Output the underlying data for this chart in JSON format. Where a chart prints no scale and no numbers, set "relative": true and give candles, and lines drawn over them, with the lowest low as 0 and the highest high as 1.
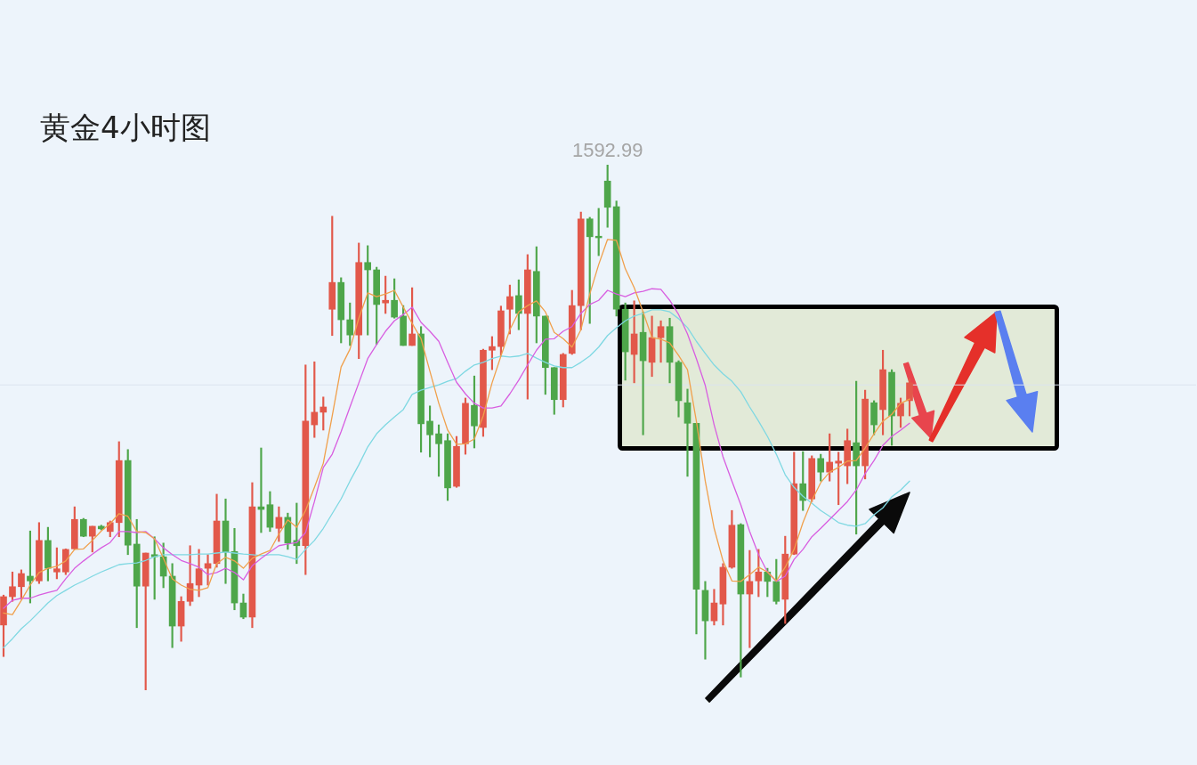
{
  "chart_data": {
    "type": "candlestick",
    "title": "黄金4小时图",
    "relative": true,
    "categories": [
      null,
      null,
      null,
      null,
      null,
      null,
      null,
      null,
      null,
      null,
      null,
      null,
      null,
      null,
      null,
      null,
      null,
      null,
      null,
      null,
      null,
      null,
      null,
      null,
      null,
      null,
      null,
      null,
      null,
      null,
      null,
      null,
      null,
      null,
      null,
      null,
      null,
      null,
      null,
      null,
      null,
      null,
      null,
      null,
      null,
      null,
      null,
      null,
      null,
      null,
      null,
      null,
      null,
      null,
      null,
      null,
      null,
      null,
      null,
      null,
      null,
      null,
      null,
      null,
      null,
      null,
      null,
      null,
      null,
      null,
      null,
      null,
      null,
      null,
      null,
      null,
      null,
      null,
      null,
      null,
      null,
      null,
      null,
      null,
      null,
      null,
      null,
      null,
      null,
      null,
      null,
      null,
      null,
      null,
      null,
      null,
      null,
      null,
      null,
      null,
      null,
      null,
      null
    ],
    "ohlc": [
      [
        0.124,
        0.181,
        0.064,
        0.178
      ],
      [
        0.178,
        0.225,
        0.169,
        0.197
      ],
      [
        0.197,
        0.229,
        0.173,
        0.222
      ],
      [
        0.217,
        0.303,
        0.166,
        0.208
      ],
      [
        0.208,
        0.319,
        0.203,
        0.285
      ],
      [
        0.285,
        0.31,
        0.208,
        0.232
      ],
      [
        0.225,
        0.271,
        0.212,
        0.231
      ],
      [
        0.225,
        0.269,
        0.22,
        0.268
      ],
      [
        0.269,
        0.349,
        0.268,
        0.325
      ],
      [
        0.325,
        0.327,
        0.292,
        0.293
      ],
      [
        0.293,
        0.312,
        0.263,
        0.312
      ],
      [
        0.312,
        0.314,
        0.305,
        0.307
      ],
      [
        0.302,
        0.322,
        0.292,
        0.319
      ],
      [
        0.319,
        0.473,
        0.292,
        0.437
      ],
      [
        0.437,
        0.458,
        0.258,
        0.276
      ],
      [
        0.278,
        0.325,
        0.119,
        0.198
      ],
      [
        0.198,
        0.261,
        0,
        0.261
      ],
      [
        0.258,
        0.292,
        0.173,
        0.254
      ],
      [
        0.254,
        0.28,
        0.195,
        0.217
      ],
      [
        0.217,
        0.241,
        0.081,
        0.122
      ],
      [
        0.122,
        0.178,
        0.093,
        0.169
      ],
      [
        0.169,
        0.275,
        0.161,
        0.203
      ],
      [
        0.2,
        0.268,
        0.178,
        0.231
      ],
      [
        0.232,
        0.258,
        0.2,
        0.241
      ],
      [
        0.241,
        0.373,
        0.234,
        0.322
      ],
      [
        0.322,
        0.364,
        0.203,
        0.263
      ],
      [
        0.264,
        0.308,
        0.153,
        0.166
      ],
      [
        0.166,
        0.183,
        0.136,
        0.139
      ],
      [
        0.139,
        0.395,
        0.119,
        0.349
      ],
      [
        0.349,
        0.461,
        0.3,
        0.344
      ],
      [
        0.353,
        0.378,
        0.302,
        0.31
      ],
      [
        0.308,
        0.349,
        0.283,
        0.329
      ],
      [
        0.329,
        0.337,
        0.268,
        0.28
      ],
      [
        0.285,
        0.356,
        0.241,
        0.275
      ],
      [
        0.275,
        0.619,
        0.22,
        0.512
      ],
      [
        0.505,
        0.625,
        0.481,
        0.529
      ],
      [
        0.529,
        0.558,
        0.495,
        0.539
      ],
      [
        0.725,
        0.902,
        0.675,
        0.776
      ],
      [
        0.776,
        0.785,
        0.661,
        0.705
      ],
      [
        0.705,
        0.737,
        0.656,
        0.676
      ],
      [
        0.676,
        0.851,
        0.631,
        0.814
      ],
      [
        0.814,
        0.846,
        0.676,
        0.8
      ],
      [
        0.8,
        0.805,
        0.658,
        0.734
      ],
      [
        0.737,
        0.788,
        0.717,
        0.742
      ],
      [
        0.742,
        0.783,
        0.708,
        0.71
      ],
      [
        0.712,
        0.732,
        0.656,
        0.656
      ],
      [
        0.656,
        0.766,
        0.656,
        0.678
      ],
      [
        0.678,
        0.692,
        0.453,
        0.507
      ],
      [
        0.512,
        0.541,
        0.444,
        0.486
      ],
      [
        0.488,
        0.505,
        0.407,
        0.469
      ],
      [
        0.475,
        0.488,
        0.361,
        0.385
      ],
      [
        0.388,
        0.483,
        0.386,
        0.464
      ],
      [
        0.469,
        0.556,
        0.449,
        0.546
      ],
      [
        0.542,
        0.598,
        0.461,
        0.503
      ],
      [
        0.5,
        0.649,
        0.483,
        0.647
      ],
      [
        0.647,
        0.673,
        0.61,
        0.654
      ],
      [
        0.654,
        0.731,
        0.636,
        0.722
      ],
      [
        0.725,
        0.771,
        0.678,
        0.749
      ],
      [
        0.751,
        0.781,
        0.686,
        0.717
      ],
      [
        0.717,
        0.829,
        0.554,
        0.8
      ],
      [
        0.797,
        0.844,
        0.661,
        0.712
      ],
      [
        0.712,
        0.712,
        0.563,
        0.614
      ],
      [
        0.614,
        0.614,
        0.525,
        0.553
      ],
      [
        0.553,
        0.641,
        0.539,
        0.639
      ],
      [
        0.641,
        0.761,
        0.639,
        0.732
      ],
      [
        0.732,
        0.91,
        0.686,
        0.897
      ],
      [
        0.897,
        0.9,
        0.698,
        0.863
      ],
      [
        0.864,
        0.917,
        0.827,
        0.861
      ],
      [
        0.969,
        1,
        0.881,
        0.919
      ],
      [
        0.92,
        0.931,
        0.712,
        0.725
      ],
      [
        0.725,
        0.737,
        0.59,
        0.644
      ],
      [
        0.639,
        0.741,
        0.585,
        0.678
      ],
      [
        0.681,
        0.72,
        0.486,
        0.627
      ],
      [
        0.624,
        0.712,
        0.597,
        0.671
      ],
      [
        0.671,
        0.703,
        0.624,
        0.692
      ],
      [
        0.692,
        0.708,
        0.585,
        0.624
      ],
      [
        0.624,
        0.627,
        0.52,
        0.551
      ],
      [
        0.547,
        0.573,
        0.407,
        0.508
      ],
      [
        0.508,
        0.508,
        0.107,
        0.192
      ],
      [
        0.19,
        0.207,
        0.059,
        0.132
      ],
      [
        0.132,
        0.192,
        0.124,
        0.166
      ],
      [
        0.164,
        0.241,
        0.124,
        0.234
      ],
      [
        0.234,
        0.342,
        0.232,
        0.314
      ],
      [
        0.315,
        0.317,
        0.025,
        0.183
      ],
      [
        0.183,
        0.266,
        0.081,
        0.207
      ],
      [
        0.208,
        0.268,
        0.178,
        0.225
      ],
      [
        0.225,
        0.232,
        0.178,
        0.207
      ],
      [
        0.207,
        0.249,
        0.164,
        0.169
      ],
      [
        0.173,
        0.293,
        0.127,
        0.259
      ],
      [
        0.259,
        0.453,
        0.258,
        0.393
      ],
      [
        0.393,
        0.454,
        0.342,
        0.361
      ],
      [
        0.364,
        0.446,
        0.359,
        0.441
      ],
      [
        0.441,
        0.449,
        0.398,
        0.415
      ],
      [
        0.415,
        0.488,
        0.398,
        0.434
      ],
      [
        0.432,
        0.453,
        0.353,
        0.436
      ],
      [
        0.427,
        0.497,
        0.393,
        0.475
      ],
      [
        0.471,
        0.588,
        0.297,
        0.427
      ],
      [
        0.427,
        0.571,
        0.402,
        0.554
      ],
      [
        0.547,
        0.551,
        0.486,
        0.505
      ],
      [
        0.534,
        0.647,
        0.486,
        0.61
      ],
      [
        0.605,
        0.61,
        0.466,
        0.522
      ],
      [
        0.522,
        0.556,
        0.5,
        0.546
      ],
      [
        0.551,
        0.593,
        0.522,
        0.585
      ]
    ],
    "colors": [
      "#e2584a",
      "#e2584a",
      "#e2584a",
      "#4ea64a",
      "#e2584a",
      "#4ea64a",
      "#e2584a",
      "#e2584a",
      "#e2584a",
      "#4ea64a",
      "#e2584a",
      "#4ea64a",
      "#e2584a",
      "#e2584a",
      "#4ea64a",
      "#4ea64a",
      "#e2584a",
      "#4ea64a",
      "#4ea64a",
      "#4ea64a",
      "#e2584a",
      "#e2584a",
      "#e2584a",
      "#e2584a",
      "#e2584a",
      "#4ea64a",
      "#4ea64a",
      "#4ea64a",
      "#e2584a",
      "#4ea64a",
      "#4ea64a",
      "#e2584a",
      "#4ea64a",
      "#4ea64a",
      "#e2584a",
      "#e2584a",
      "#e2584a",
      "#e2584a",
      "#4ea64a",
      "#4ea64a",
      "#e2584a",
      "#4ea64a",
      "#4ea64a",
      "#e2584a",
      "#4ea64a",
      "#4ea64a",
      "#e2584a",
      "#4ea64a",
      "#4ea64a",
      "#4ea64a",
      "#4ea64a",
      "#e2584a",
      "#e2584a",
      "#4ea64a",
      "#e2584a",
      "#e2584a",
      "#e2584a",
      "#e2584a",
      "#4ea64a",
      "#e2584a",
      "#4ea64a",
      "#4ea64a",
      "#4ea64a",
      "#e2584a",
      "#e2584a",
      "#e2584a",
      "#4ea64a",
      "#4ea64a",
      "#4ea64a",
      "#4ea64a",
      "#4ea64a",
      "#e2584a",
      "#4ea64a",
      "#e2584a",
      "#e2584a",
      "#4ea64a",
      "#4ea64a",
      "#4ea64a",
      "#4ea64a",
      "#4ea64a",
      "#e2584a",
      "#e2584a",
      "#e2584a",
      "#4ea64a",
      "#e2584a",
      "#e2584a",
      "#4ea64a",
      "#4ea64a",
      "#e2584a",
      "#e2584a",
      "#4ea64a",
      "#e2584a",
      "#4ea64a",
      "#e2584a",
      "#e2584a",
      "#e2584a",
      "#4ea64a",
      "#e2584a",
      "#4ea64a",
      "#e2584a",
      "#4ea64a",
      "#e2584a",
      "#e2584a"
    ],
    "series": [
      {
        "type": "line",
        "color": "#f0a04c",
        "values": [
          0.147,
          0.144,
          0.171,
          0.2,
          0.224,
          0.232,
          0.236,
          0.246,
          0.268,
          0.269,
          0.285,
          0.303,
          0.317,
          0.336,
          0.331,
          0.302,
          0.3,
          0.288,
          0.251,
          0.212,
          0.2,
          0.192,
          0.19,
          0.195,
          0.241,
          0.253,
          0.246,
          0.232,
          0.251,
          0.259,
          0.266,
          0.297,
          0.324,
          0.31,
          0.342,
          0.386,
          0.432,
          0.522,
          0.615,
          0.649,
          0.708,
          0.756,
          0.749,
          0.754,
          0.761,
          0.729,
          0.698,
          0.669,
          0.607,
          0.546,
          0.495,
          0.468,
          0.469,
          0.478,
          0.522,
          0.585,
          0.636,
          0.686,
          0.72,
          0.732,
          0.741,
          0.72,
          0.681,
          0.669,
          0.653,
          0.686,
          0.754,
          0.81,
          0.858,
          0.856,
          0.802,
          0.766,
          0.72,
          0.671,
          0.668,
          0.661,
          0.637,
          0.61,
          0.512,
          0.398,
          0.308,
          0.246,
          0.208,
          0.207,
          0.22,
          0.234,
          0.225,
          0.208,
          0.234,
          0.268,
          0.319,
          0.361,
          0.395,
          0.415,
          0.424,
          0.436,
          0.437,
          0.461,
          0.488,
          0.512,
          0.525,
          0.546,
          0.554
        ]
      },
      {
        "type": "line",
        "color": "#d85ee0",
        "values": [
          0.156,
          0.171,
          0.175,
          0.175,
          0.181,
          0.186,
          0.19,
          0.212,
          0.232,
          0.246,
          0.259,
          0.271,
          0.281,
          0.302,
          0.302,
          0.3,
          0.302,
          0.288,
          0.271,
          0.258,
          0.247,
          0.241,
          0.234,
          0.22,
          0.224,
          0.232,
          0.224,
          0.21,
          0.237,
          0.251,
          0.263,
          0.275,
          0.278,
          0.281,
          0.3,
          0.359,
          0.424,
          0.449,
          0.492,
          0.539,
          0.585,
          0.631,
          0.658,
          0.683,
          0.703,
          0.715,
          0.729,
          0.7,
          0.683,
          0.664,
          0.624,
          0.586,
          0.564,
          0.546,
          0.537,
          0.537,
          0.541,
          0.564,
          0.59,
          0.619,
          0.647,
          0.668,
          0.669,
          0.683,
          0.692,
          0.717,
          0.734,
          0.742,
          0.761,
          0.754,
          0.749,
          0.756,
          0.759,
          0.764,
          0.763,
          0.742,
          0.715,
          0.678,
          0.631,
          0.58,
          0.505,
          0.444,
          0.398,
          0.353,
          0.302,
          0.258,
          0.225,
          0.207,
          0.217,
          0.249,
          0.268,
          0.292,
          0.308,
          0.325,
          0.342,
          0.359,
          0.381,
          0.412,
          0.437,
          0.466,
          0.483,
          0.495,
          0.508
        ]
      },
      {
        "type": "line",
        "color": "#7fd8e2",
        "values": [
          0.081,
          0.098,
          0.117,
          0.132,
          0.149,
          0.166,
          0.18,
          0.19,
          0.2,
          0.208,
          0.217,
          0.225,
          0.232,
          0.239,
          0.241,
          0.242,
          0.247,
          0.254,
          0.258,
          0.258,
          0.258,
          0.258,
          0.259,
          0.259,
          0.261,
          0.263,
          0.261,
          0.259,
          0.258,
          0.256,
          0.258,
          0.258,
          0.254,
          0.249,
          0.268,
          0.285,
          0.308,
          0.336,
          0.364,
          0.398,
          0.429,
          0.463,
          0.488,
          0.505,
          0.52,
          0.534,
          0.563,
          0.571,
          0.576,
          0.581,
          0.588,
          0.593,
          0.607,
          0.619,
          0.624,
          0.631,
          0.636,
          0.634,
          0.636,
          0.641,
          0.632,
          0.624,
          0.617,
          0.614,
          0.614,
          0.624,
          0.636,
          0.653,
          0.675,
          0.69,
          0.703,
          0.712,
          0.717,
          0.724,
          0.724,
          0.72,
          0.707,
          0.69,
          0.664,
          0.641,
          0.619,
          0.602,
          0.588,
          0.568,
          0.539,
          0.512,
          0.483,
          0.449,
          0.41,
          0.386,
          0.369,
          0.356,
          0.342,
          0.331,
          0.319,
          0.314,
          0.312,
          0.317,
          0.334,
          0.347,
          0.368,
          0.381,
          0.398
        ]
      }
    ],
    "annotations": [
      {
        "text": "1592.99",
        "y": 1
      }
    ],
    "ref_lines": [
      {
        "axis": "y",
        "value": 0.581,
        "color": "#dbe5ef"
      }
    ],
    "marker": "none",
    "line_style": "solid",
    "legend": false
  }
}
